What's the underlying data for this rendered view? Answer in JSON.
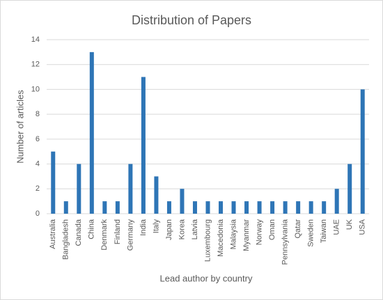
{
  "chart_data": {
    "type": "bar",
    "title": "Distribution of Papers",
    "x_label": "Lead author by country",
    "y_label": "Number of articles",
    "categories": [
      "Australia",
      "Bangladesh",
      "Canada",
      "China",
      "Denmark",
      "Finland",
      "Germany",
      "India",
      "Italy",
      "Japan",
      "Korea",
      "Latvia",
      "Luxembourg",
      "Macedonia",
      "Malaysia",
      "Myanmar",
      "Norway",
      "Oman",
      "Pennsylvania",
      "Qatar",
      "Sweden",
      "Taiwan",
      "UAE",
      "UK",
      "USA"
    ],
    "values": [
      5,
      1,
      4,
      13,
      1,
      1,
      4,
      11,
      3,
      1,
      2,
      1,
      1,
      1,
      1,
      1,
      1,
      1,
      1,
      1,
      1,
      1,
      2,
      4,
      10
    ],
    "color": "#2e75b6",
    "ylim": [
      0,
      14
    ],
    "yticks": [
      0,
      2,
      4,
      6,
      8,
      10,
      12,
      14
    ],
    "grid": true
  }
}
